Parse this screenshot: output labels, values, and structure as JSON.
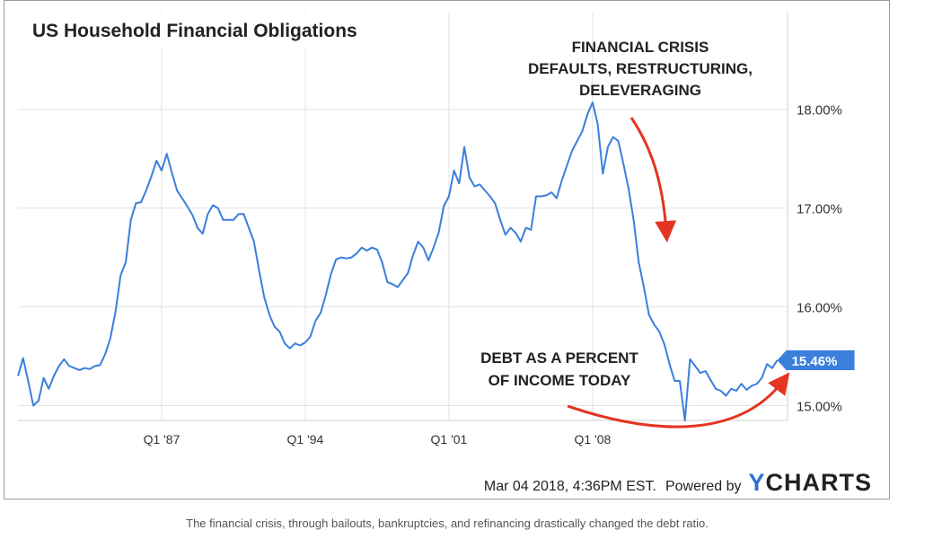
{
  "chart_data": {
    "type": "line",
    "title": "US Household Financial Obligations",
    "series": [
      {
        "values": [
          [
            1980.0,
            15.3
          ],
          [
            1980.25,
            15.48
          ],
          [
            1980.5,
            15.25
          ],
          [
            1980.75,
            15.0
          ],
          [
            1981.0,
            15.05
          ],
          [
            1981.25,
            15.28
          ],
          [
            1981.5,
            15.17
          ],
          [
            1981.75,
            15.3
          ],
          [
            1982.0,
            15.4
          ],
          [
            1982.25,
            15.47
          ],
          [
            1982.5,
            15.4
          ],
          [
            1982.75,
            15.38
          ],
          [
            1983.0,
            15.36
          ],
          [
            1983.25,
            15.38
          ],
          [
            1983.5,
            15.37
          ],
          [
            1983.75,
            15.4
          ],
          [
            1984.0,
            15.41
          ],
          [
            1984.25,
            15.52
          ],
          [
            1984.5,
            15.68
          ],
          [
            1984.75,
            15.95
          ],
          [
            1985.0,
            16.32
          ],
          [
            1985.25,
            16.45
          ],
          [
            1985.5,
            16.88
          ],
          [
            1985.75,
            17.05
          ],
          [
            1986.0,
            17.06
          ],
          [
            1986.25,
            17.18
          ],
          [
            1986.5,
            17.32
          ],
          [
            1986.75,
            17.48
          ],
          [
            1987.0,
            17.38
          ],
          [
            1987.25,
            17.55
          ],
          [
            1987.5,
            17.36
          ],
          [
            1987.75,
            17.18
          ],
          [
            1988.0,
            17.1
          ],
          [
            1988.25,
            17.02
          ],
          [
            1988.5,
            16.93
          ],
          [
            1988.75,
            16.8
          ],
          [
            1989.0,
            16.74
          ],
          [
            1989.25,
            16.94
          ],
          [
            1989.5,
            17.03
          ],
          [
            1989.75,
            17.0
          ],
          [
            1990.0,
            16.88
          ],
          [
            1990.25,
            16.88
          ],
          [
            1990.5,
            16.88
          ],
          [
            1990.75,
            16.94
          ],
          [
            1991.0,
            16.94
          ],
          [
            1991.25,
            16.8
          ],
          [
            1991.5,
            16.66
          ],
          [
            1991.75,
            16.37
          ],
          [
            1992.0,
            16.1
          ],
          [
            1992.25,
            15.92
          ],
          [
            1992.5,
            15.8
          ],
          [
            1992.75,
            15.75
          ],
          [
            1993.0,
            15.63
          ],
          [
            1993.25,
            15.58
          ],
          [
            1993.5,
            15.63
          ],
          [
            1993.75,
            15.61
          ],
          [
            1994.0,
            15.64
          ],
          [
            1994.25,
            15.7
          ],
          [
            1994.5,
            15.86
          ],
          [
            1994.75,
            15.94
          ],
          [
            1995.0,
            16.12
          ],
          [
            1995.25,
            16.33
          ],
          [
            1995.5,
            16.48
          ],
          [
            1995.75,
            16.5
          ],
          [
            1996.0,
            16.49
          ],
          [
            1996.25,
            16.5
          ],
          [
            1996.5,
            16.54
          ],
          [
            1996.75,
            16.6
          ],
          [
            1997.0,
            16.57
          ],
          [
            1997.25,
            16.6
          ],
          [
            1997.5,
            16.58
          ],
          [
            1997.75,
            16.45
          ],
          [
            1998.0,
            16.25
          ],
          [
            1998.25,
            16.23
          ],
          [
            1998.5,
            16.2
          ],
          [
            1998.75,
            16.27
          ],
          [
            1999.0,
            16.34
          ],
          [
            1999.25,
            16.52
          ],
          [
            1999.5,
            16.66
          ],
          [
            1999.75,
            16.6
          ],
          [
            2000.0,
            16.47
          ],
          [
            2000.25,
            16.6
          ],
          [
            2000.5,
            16.75
          ],
          [
            2000.75,
            17.02
          ],
          [
            2001.0,
            17.12
          ],
          [
            2001.25,
            17.38
          ],
          [
            2001.5,
            17.25
          ],
          [
            2001.75,
            17.62
          ],
          [
            2002.0,
            17.31
          ],
          [
            2002.25,
            17.22
          ],
          [
            2002.5,
            17.24
          ],
          [
            2002.75,
            17.18
          ],
          [
            2003.0,
            17.12
          ],
          [
            2003.25,
            17.05
          ],
          [
            2003.5,
            16.88
          ],
          [
            2003.75,
            16.73
          ],
          [
            2004.0,
            16.8
          ],
          [
            2004.25,
            16.75
          ],
          [
            2004.5,
            16.66
          ],
          [
            2004.75,
            16.8
          ],
          [
            2005.0,
            16.78
          ],
          [
            2005.25,
            17.12
          ],
          [
            2005.5,
            17.12
          ],
          [
            2005.75,
            17.13
          ],
          [
            2006.0,
            17.16
          ],
          [
            2006.25,
            17.1
          ],
          [
            2006.5,
            17.28
          ],
          [
            2006.75,
            17.43
          ],
          [
            2007.0,
            17.58
          ],
          [
            2007.25,
            17.68
          ],
          [
            2007.5,
            17.78
          ],
          [
            2007.75,
            17.95
          ],
          [
            2008.0,
            18.07
          ],
          [
            2008.25,
            17.85
          ],
          [
            2008.5,
            17.35
          ],
          [
            2008.75,
            17.62
          ],
          [
            2009.0,
            17.72
          ],
          [
            2009.25,
            17.68
          ],
          [
            2009.5,
            17.45
          ],
          [
            2009.75,
            17.2
          ],
          [
            2010.0,
            16.88
          ],
          [
            2010.25,
            16.45
          ],
          [
            2010.5,
            16.2
          ],
          [
            2010.75,
            15.92
          ],
          [
            2011.0,
            15.82
          ],
          [
            2011.25,
            15.75
          ],
          [
            2011.5,
            15.62
          ],
          [
            2011.75,
            15.42
          ],
          [
            2012.0,
            15.25
          ],
          [
            2012.25,
            15.25
          ],
          [
            2012.5,
            14.85
          ],
          [
            2012.75,
            15.47
          ],
          [
            2013.0,
            15.4
          ],
          [
            2013.25,
            15.33
          ],
          [
            2013.5,
            15.35
          ],
          [
            2013.75,
            15.26
          ],
          [
            2014.0,
            15.17
          ],
          [
            2014.25,
            15.15
          ],
          [
            2014.5,
            15.1
          ],
          [
            2014.75,
            15.17
          ],
          [
            2015.0,
            15.15
          ],
          [
            2015.25,
            15.22
          ],
          [
            2015.5,
            15.16
          ],
          [
            2015.75,
            15.2
          ],
          [
            2016.0,
            15.22
          ],
          [
            2016.25,
            15.28
          ],
          [
            2016.5,
            15.42
          ],
          [
            2016.75,
            15.38
          ],
          [
            2017.0,
            15.46
          ]
        ]
      }
    ],
    "x_ticks": [
      {
        "value": 1987.0,
        "label": "Q1 '87"
      },
      {
        "value": 1994.0,
        "label": "Q1 '94"
      },
      {
        "value": 2001.0,
        "label": "Q1 '01"
      },
      {
        "value": 2008.0,
        "label": "Q1 '08"
      }
    ],
    "y_ticks": [
      {
        "value": 15.0,
        "label": "15.00%"
      },
      {
        "value": 16.0,
        "label": "16.00%"
      },
      {
        "value": 17.0,
        "label": "17.00%"
      },
      {
        "value": 18.0,
        "label": "18.00%"
      }
    ],
    "xlim": [
      1980.0,
      2017.5
    ],
    "ylim": [
      14.85,
      18.98
    ],
    "y_axis_side": "right",
    "grid": true,
    "last_value": {
      "x": 2017.0,
      "value": 15.46,
      "label": "15.46%"
    },
    "annotations": [
      {
        "lines": [
          "FINANCIAL CRISIS",
          "DEFAULTS, RESTRUCTURING,",
          "DELEVERAGING"
        ]
      },
      {
        "lines": [
          "DEBT AS A PERCENT",
          "OF INCOME TODAY"
        ]
      }
    ],
    "colors": {
      "line": "#3a7fdc",
      "badge": "#3a7fdc",
      "arrow": "#e53421",
      "grid": "#e3e3e3"
    }
  },
  "footer": {
    "timestamp": "Mar 04 2018, 4:36PM EST.",
    "powered_by": "Powered by",
    "brand_y": "Y",
    "brand_rest": "CHARTS"
  },
  "caption": "The financial crisis, through bailouts, bankruptcies, and refinancing drastically changed the debt ratio."
}
